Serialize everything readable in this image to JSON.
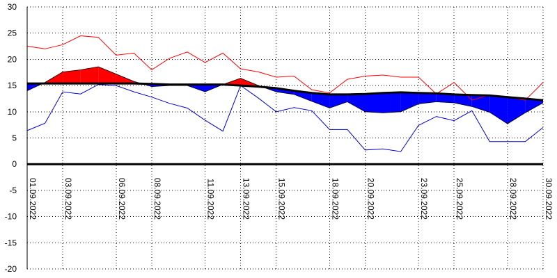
{
  "chart_data": {
    "type": "area",
    "title": "",
    "xlabel": "",
    "ylabel": "",
    "ylim": [
      -20,
      30
    ],
    "y_ticks": [
      "30",
      "25",
      "20",
      "15",
      "10",
      "5",
      "0",
      "-5",
      "-10",
      "-15",
      "-20"
    ],
    "grid": "dotted",
    "x_tick_labels": [
      "01.09.2022",
      "03.09.2022",
      "06.09.2022",
      "08.09.2022",
      "11.09.2022",
      "13.09.2022",
      "15.09.2022",
      "18.09.2022",
      "20.09.2022",
      "23.09.2022",
      "25.09.2022",
      "28.09.2022",
      "30.09.2022"
    ],
    "x_tick_days": [
      1,
      3,
      6,
      8,
      11,
      13,
      15,
      18,
      20,
      23,
      25,
      28,
      30
    ],
    "x_range_days": [
      1,
      30
    ],
    "colors": {
      "above_normal_fill": "#ff0000",
      "below_normal_fill": "#0000ff",
      "max_line": "#ff0000",
      "min_line": "#0000cc",
      "normal_line": "#000000",
      "zero_line": "#000000",
      "grid": "#000000"
    },
    "x": [
      "01.09",
      "02.09",
      "03.09",
      "04.09",
      "05.09",
      "06.09",
      "07.09",
      "08.09",
      "09.09",
      "10.09",
      "11.09",
      "12.09",
      "13.09",
      "14.09",
      "15.09",
      "16.09",
      "17.09",
      "18.09",
      "19.09",
      "20.09",
      "21.09",
      "22.09",
      "23.09",
      "24.09",
      "25.09",
      "26.09",
      "27.09",
      "28.09",
      "29.09",
      "30.09"
    ],
    "series": [
      {
        "values": [
          22.5,
          22.0,
          22.8,
          24.5,
          24.2,
          20.8,
          21.2,
          18.0,
          20.2,
          21.4,
          19.4,
          21.2,
          18.2,
          17.6,
          16.6,
          16.8,
          14.2,
          13.6,
          16.2,
          16.8,
          17.0,
          16.6,
          16.6,
          13.4,
          15.6,
          12.2,
          13.2,
          12.8,
          12.2,
          15.6
        ]
      },
      {
        "values": [
          14.0,
          15.6,
          17.6,
          18.0,
          18.6,
          17.2,
          15.8,
          14.8,
          15.0,
          15.0,
          13.8,
          15.2,
          16.4,
          15.0,
          13.8,
          13.3,
          12.0,
          10.7,
          11.9,
          10.0,
          9.8,
          10.0,
          11.5,
          11.9,
          11.7,
          11.0,
          9.9,
          7.7,
          9.8,
          11.7
        ]
      },
      {
        "values": [
          6.4,
          7.8,
          13.8,
          13.4,
          15.2,
          15.0,
          13.8,
          12.8,
          11.6,
          10.7,
          8.4,
          6.3,
          15.0,
          12.6,
          10.0,
          10.8,
          10.2,
          6.6,
          6.6,
          2.7,
          2.9,
          2.4,
          7.4,
          9.1,
          8.3,
          10.2,
          4.3,
          4.3,
          4.3,
          7.0
        ]
      },
      {
        "values": [
          15.4,
          15.4,
          15.4,
          15.4,
          15.4,
          15.4,
          15.4,
          15.3,
          15.2,
          15.2,
          15.2,
          15.2,
          15.0,
          14.8,
          14.5,
          14.0,
          13.6,
          13.3,
          13.3,
          13.4,
          13.6,
          13.7,
          13.6,
          13.5,
          13.3,
          13.2,
          13.1,
          12.8,
          12.5,
          12.2
        ]
      }
    ]
  }
}
